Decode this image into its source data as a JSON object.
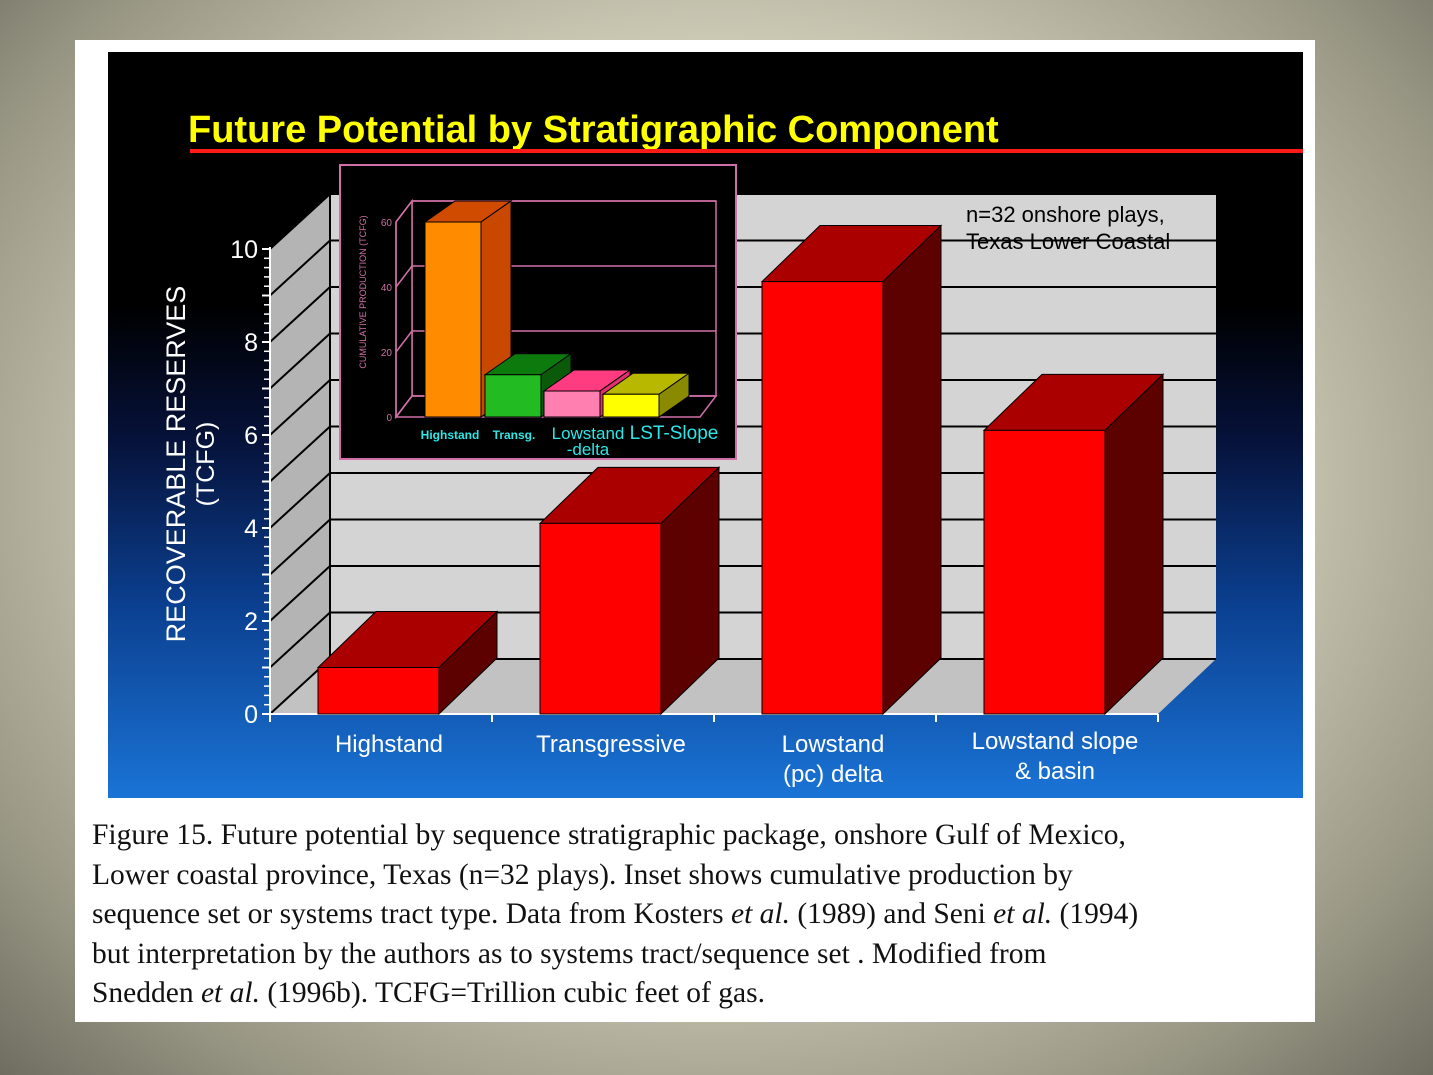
{
  "chart_data": [
    {
      "type": "bar",
      "title": "Future Potential by Stratigraphic Component",
      "annotation": [
        "n=32 onshore plays,",
        "Texas Lower Coastal"
      ],
      "ylabel": "RECOVERABLE RESERVES",
      "yunit": "(TCFG)",
      "ylim": [
        0,
        10
      ],
      "yticks": [
        "0",
        "2",
        "4",
        "6",
        "8",
        "10"
      ],
      "grid": true,
      "categories": [
        [
          "Highstand"
        ],
        [
          "Transgressive"
        ],
        [
          "Lowstand",
          "(pc) delta"
        ],
        [
          "Lowstand slope",
          "& basin"
        ]
      ],
      "values": [
        1.0,
        4.1,
        9.3,
        6.1
      ],
      "colors": {
        "front": "#ff0000",
        "top": "#aa0000",
        "side": "#5c0000"
      }
    },
    {
      "type": "bar",
      "inset": true,
      "ylabel": "CUMULATIVE PRODUCTION (TCFG)",
      "ylim": [
        0,
        60
      ],
      "yticks": [
        "0",
        "20",
        "40",
        "60"
      ],
      "grid": true,
      "categories": [
        "Highstand",
        "Transg.",
        "Lowstand -delta",
        "LST-Slope"
      ],
      "category_lines": [
        [
          "Highstand"
        ],
        [
          "Transg."
        ],
        [
          "Lowstand",
          "-delta"
        ],
        [
          "LST-Slope"
        ]
      ],
      "values": [
        60,
        13,
        8,
        7
      ],
      "colors": [
        {
          "front": "#ff8c00",
          "top": "#d04a00",
          "side": "#c84800"
        },
        {
          "front": "#22bb22",
          "top": "#0d7a0d",
          "side": "#0a5a0a"
        },
        {
          "front": "#ff7fb0",
          "top": "#ff3c80",
          "side": "#e03070"
        },
        {
          "front": "#ffff00",
          "top": "#b8b800",
          "side": "#8a8a00"
        }
      ],
      "label_color": "#2ee6e6"
    }
  ],
  "caption": {
    "lines": [
      [
        {
          "t": "Figure 15. Future potential by sequence stratigraphic package, onshore Gulf of Mexico,"
        }
      ],
      [
        {
          "t": "Lower coastal province, Texas (n=32 plays).  Inset shows cumulative production by"
        }
      ],
      [
        {
          "t": "sequence set or systems tract type. Data from Kosters "
        },
        {
          "t": "et al.",
          "i": true
        },
        {
          "t": " (1989) and Seni "
        },
        {
          "t": "et al.",
          "i": true
        },
        {
          "t": " (1994)"
        }
      ],
      [
        {
          "t": "but interpretation by the authors as to systems tract/sequence set . Modified from"
        }
      ],
      [
        {
          "t": "Snedden "
        },
        {
          "t": "et al.",
          "i": true
        },
        {
          "t": " (1996b). TCFG=Trillion cubic feet of gas."
        }
      ]
    ]
  }
}
